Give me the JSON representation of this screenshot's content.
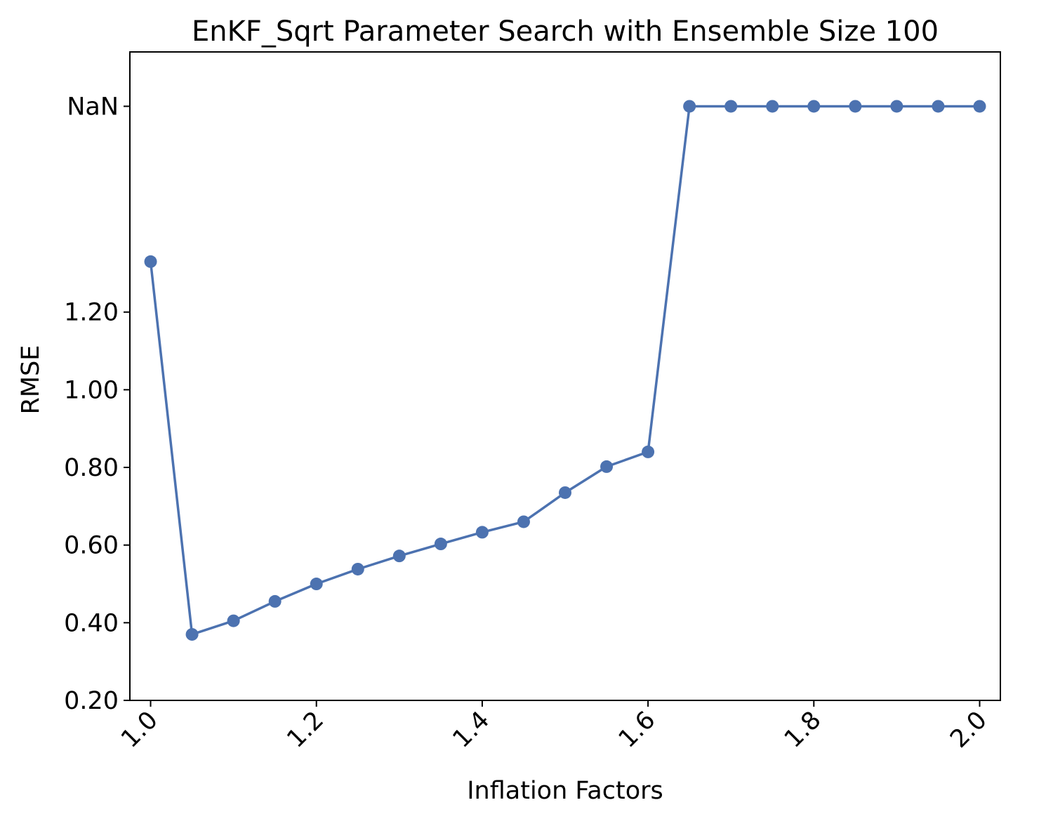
{
  "chart_data": {
    "type": "line",
    "title": "EnKF_Sqrt Parameter Search with Ensemble Size 100",
    "xlabel": "Inflation Factors",
    "ylabel": "RMSE",
    "xlim": [
      0.975,
      2.025
    ],
    "x_ticks": [
      {
        "value": 1.0,
        "label": "1.0"
      },
      {
        "value": 1.2,
        "label": "1.2"
      },
      {
        "value": 1.4,
        "label": "1.4"
      },
      {
        "value": 1.6,
        "label": "1.6"
      },
      {
        "value": 1.8,
        "label": "1.8"
      },
      {
        "value": 2.0,
        "label": "2.0"
      }
    ],
    "y_ticks": [
      {
        "value": 0.2,
        "label": "0.20"
      },
      {
        "value": 0.4,
        "label": "0.40"
      },
      {
        "value": 0.6,
        "label": "0.60"
      },
      {
        "value": 0.8,
        "label": "0.80"
      },
      {
        "value": 1.0,
        "label": "1.00"
      },
      {
        "value": 1.2,
        "label": "1.20"
      },
      {
        "value": 1.73,
        "label": "NaN"
      }
    ],
    "ylim": [
      0.2,
      1.87
    ],
    "nan_display_value": 1.73,
    "grid": false,
    "color": "#4c72b0",
    "series": [
      {
        "x": [
          1.0,
          1.05,
          1.1,
          1.15,
          1.2,
          1.25,
          1.3,
          1.35,
          1.4,
          1.45,
          1.5,
          1.55,
          1.6,
          1.65,
          1.7,
          1.75,
          1.8,
          1.85,
          1.9,
          1.95,
          2.0
        ],
        "y": [
          1.33,
          0.37,
          0.405,
          0.455,
          0.5,
          0.538,
          0.572,
          0.603,
          0.633,
          0.66,
          0.735,
          0.802,
          0.84,
          null,
          null,
          null,
          null,
          null,
          null,
          null,
          null
        ]
      }
    ]
  }
}
